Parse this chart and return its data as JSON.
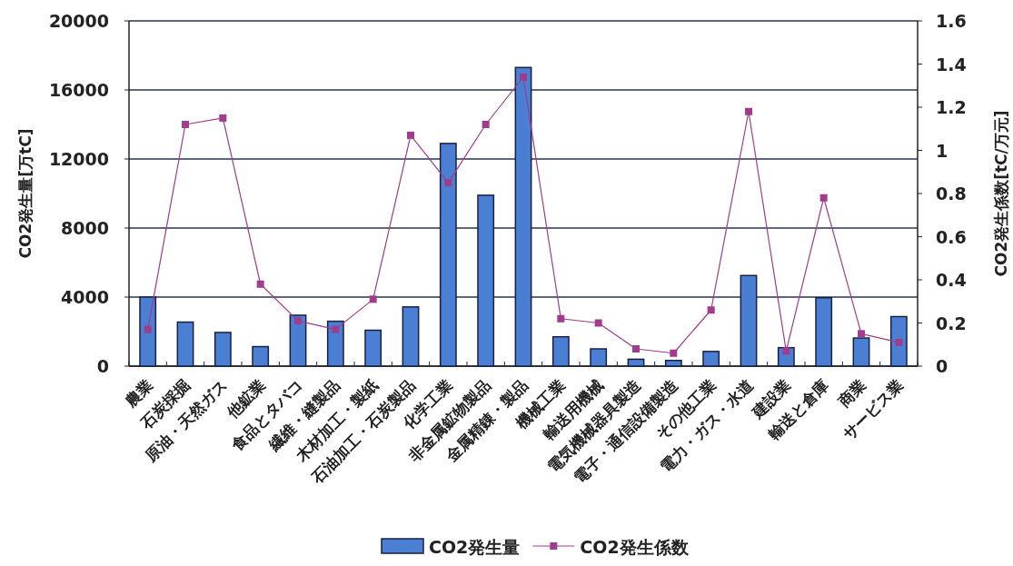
{
  "chart_data": {
    "type": "bar",
    "categories": [
      "農業",
      "石炭採掘",
      "原油・天然ガス",
      "他鉱業",
      "食品とタバコ",
      "繊維・縫製品",
      "木材加工・製紙",
      "石油加工・石炭製品",
      "化学工業",
      "非金属鉱物製品",
      "金属精錬・製品",
      "機械工業",
      "輸送用機械",
      "電気機械器具製造",
      "電子・通信設備製造",
      "その他工業",
      "電力・ガス・水道",
      "建設業",
      "輸送と倉庫",
      "商業",
      "サービス業"
    ],
    "series": [
      {
        "name": "CO2発生量",
        "color": "#4a7fd4",
        "values": [
          4000,
          2550,
          1950,
          1130,
          2950,
          2600,
          2080,
          3430,
          12900,
          9900,
          17300,
          1700,
          1000,
          400,
          330,
          850,
          5250,
          1070,
          3960,
          1630,
          2870
        ]
      },
      {
        "name": "CO2発生係数",
        "type": "line",
        "axis": "y2",
        "color": "#a03c8c",
        "values": [
          0.17,
          1.12,
          1.15,
          0.38,
          0.21,
          0.17,
          0.31,
          1.07,
          0.85,
          1.12,
          1.34,
          0.22,
          0.2,
          0.08,
          0.06,
          0.26,
          1.18,
          0.07,
          0.78,
          0.15,
          0.11
        ]
      }
    ],
    "marker": "square",
    "ylim": [
      0,
      20000
    ],
    "yticks": [
      0,
      4000,
      8000,
      12000,
      16000,
      20000
    ],
    "y2lim": [
      0,
      1.6
    ],
    "y2ticks": [
      0,
      0.2,
      0.4,
      0.6,
      0.8,
      1,
      1.2,
      1.4,
      1.6
    ],
    "ylabel": "CO2発生量[万tC]",
    "y2label": "CO2発生係数[tC/万元]",
    "grid": "y",
    "legend": "bottom"
  }
}
